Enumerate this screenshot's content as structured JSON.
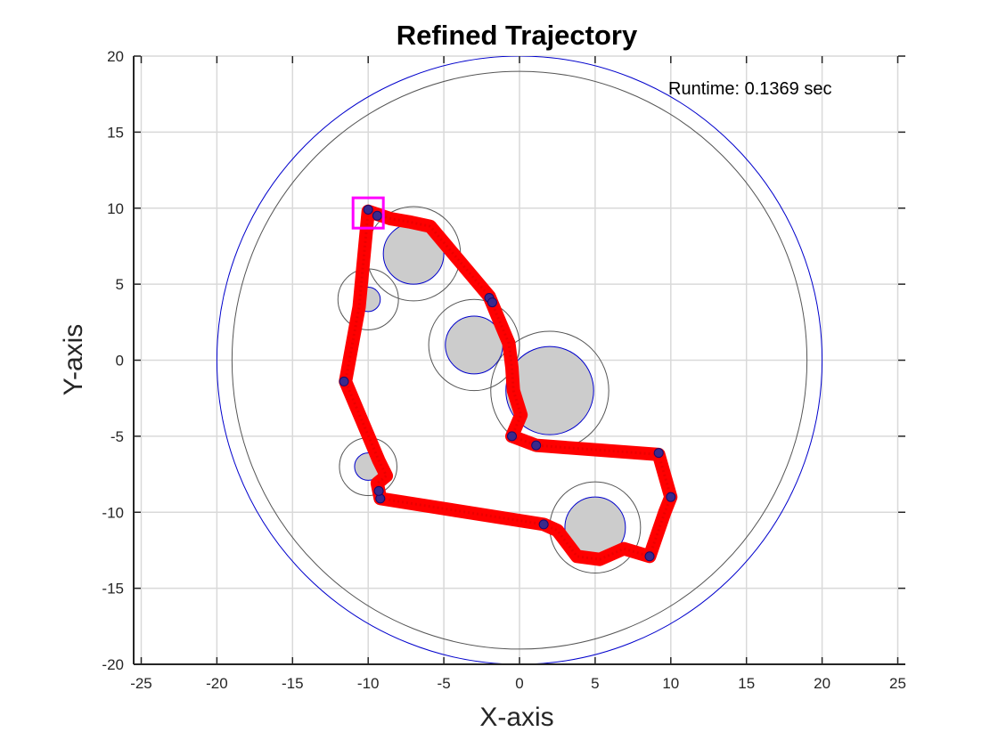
{
  "chart_data": {
    "type": "scatter",
    "title": "Refined Trajectory",
    "xlabel": "X-axis",
    "ylabel": "Y-axis",
    "xlim": [
      -25.5,
      25.5
    ],
    "ylim": [
      -20,
      20
    ],
    "xticks": [
      -25,
      -20,
      -15,
      -10,
      -5,
      0,
      5,
      10,
      15,
      20,
      25
    ],
    "yticks": [
      -20,
      -15,
      -10,
      -5,
      0,
      5,
      10,
      15,
      20
    ],
    "grid": true,
    "annotation": "Runtime: 0.1369 sec",
    "boundary": {
      "center": [
        0,
        0
      ],
      "outer_radius": 20,
      "inner_radius": 19
    },
    "obstacles": [
      {
        "center": [
          -7,
          7
        ],
        "radius": 2.0,
        "clearance_radius": 3.1
      },
      {
        "center": [
          -10,
          4
        ],
        "radius": 0.8,
        "clearance_radius": 2.0
      },
      {
        "center": [
          -3,
          1
        ],
        "radius": 1.9,
        "clearance_radius": 3.0
      },
      {
        "center": [
          2,
          -2
        ],
        "radius": 2.9,
        "clearance_radius": 3.9
      },
      {
        "center": [
          -10,
          -7
        ],
        "radius": 0.9,
        "clearance_radius": 1.9
      },
      {
        "center": [
          5,
          -11
        ],
        "radius": 2.0,
        "clearance_radius": 3.0
      }
    ],
    "start_marker": {
      "x": -10,
      "y": 9.8
    },
    "trajectory": {
      "color": "#ff0000",
      "points": [
        [
          -10,
          9.8
        ],
        [
          -8.5,
          9.3
        ],
        [
          -7.3,
          9.1
        ],
        [
          -5.9,
          8.8
        ],
        [
          -2,
          4.2
        ],
        [
          -1.5,
          3
        ],
        [
          -0.7,
          1.1
        ],
        [
          -0.5,
          -0.5
        ],
        [
          -0.4,
          -2
        ],
        [
          0.1,
          -3.6
        ],
        [
          -0.5,
          -5
        ],
        [
          1.1,
          -5.6
        ],
        [
          9.2,
          -6.2
        ],
        [
          10,
          -9
        ],
        [
          9.6,
          -10
        ],
        [
          8.6,
          -12.9
        ],
        [
          6.9,
          -12.4
        ],
        [
          5.3,
          -13.1
        ],
        [
          3.8,
          -12.9
        ],
        [
          2.5,
          -11.2
        ],
        [
          1.6,
          -10.8
        ],
        [
          -9.2,
          -9.1
        ],
        [
          -9.4,
          -8.1
        ],
        [
          -8.8,
          -7.6
        ],
        [
          -9.3,
          -6.6
        ],
        [
          -11.5,
          -1.4
        ],
        [
          -10.6,
          3.5
        ],
        [
          -10,
          9.8
        ]
      ]
    },
    "waypoints": [
      [
        -10,
        9.9
      ],
      [
        -9.4,
        9.5
      ],
      [
        -2,
        4.1
      ],
      [
        -1.8,
        3.8
      ],
      [
        -0.5,
        -5
      ],
      [
        1.1,
        -5.6
      ],
      [
        9.2,
        -6.1
      ],
      [
        10,
        -9
      ],
      [
        8.6,
        -12.9
      ],
      [
        1.6,
        -10.8
      ],
      [
        -9.2,
        -9.1
      ],
      [
        -9.3,
        -8.6
      ],
      [
        -11.6,
        -1.4
      ]
    ]
  }
}
